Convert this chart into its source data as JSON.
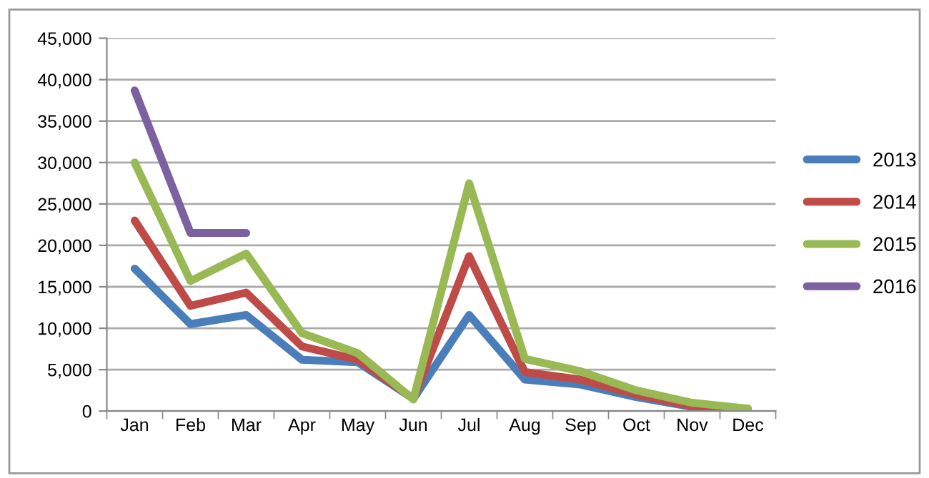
{
  "chart_data": {
    "type": "line",
    "categories": [
      "Jan",
      "Feb",
      "Mar",
      "Apr",
      "May",
      "Jun",
      "Jul",
      "Aug",
      "Sep",
      "Oct",
      "Nov",
      "Dec"
    ],
    "series": [
      {
        "name": "2013",
        "color": "#4a7ebb",
        "values": [
          17200,
          10500,
          11600,
          6200,
          5900,
          1500,
          11600,
          3800,
          3200,
          1700,
          500,
          200
        ]
      },
      {
        "name": "2014",
        "color": "#be4b48",
        "values": [
          23000,
          12700,
          14300,
          7800,
          6200,
          1500,
          18700,
          4700,
          3800,
          2000,
          600,
          300
        ]
      },
      {
        "name": "2015",
        "color": "#98b954",
        "values": [
          30000,
          15700,
          19000,
          9400,
          7000,
          1400,
          27500,
          6300,
          4800,
          2500,
          1000,
          300
        ]
      },
      {
        "name": "2016",
        "color": "#7d60a0",
        "values": [
          38700,
          21500,
          21500,
          null,
          null,
          null,
          null,
          null,
          null,
          null,
          null,
          null
        ]
      }
    ],
    "ylim": [
      0,
      45000
    ],
    "yticks": [
      {
        "value": 0,
        "label": "0"
      },
      {
        "value": 5000,
        "label": "5,000"
      },
      {
        "value": 10000,
        "label": "10,000"
      },
      {
        "value": 15000,
        "label": "15,000"
      },
      {
        "value": 20000,
        "label": "20,000"
      },
      {
        "value": 25000,
        "label": "25,000"
      },
      {
        "value": 30000,
        "label": "30,000"
      },
      {
        "value": 35000,
        "label": "35,000"
      },
      {
        "value": 40000,
        "label": "40,000"
      },
      {
        "value": 45000,
        "label": "45,000"
      }
    ],
    "grid": "y",
    "legend": "right",
    "marker": "none",
    "line_style": "solid"
  }
}
